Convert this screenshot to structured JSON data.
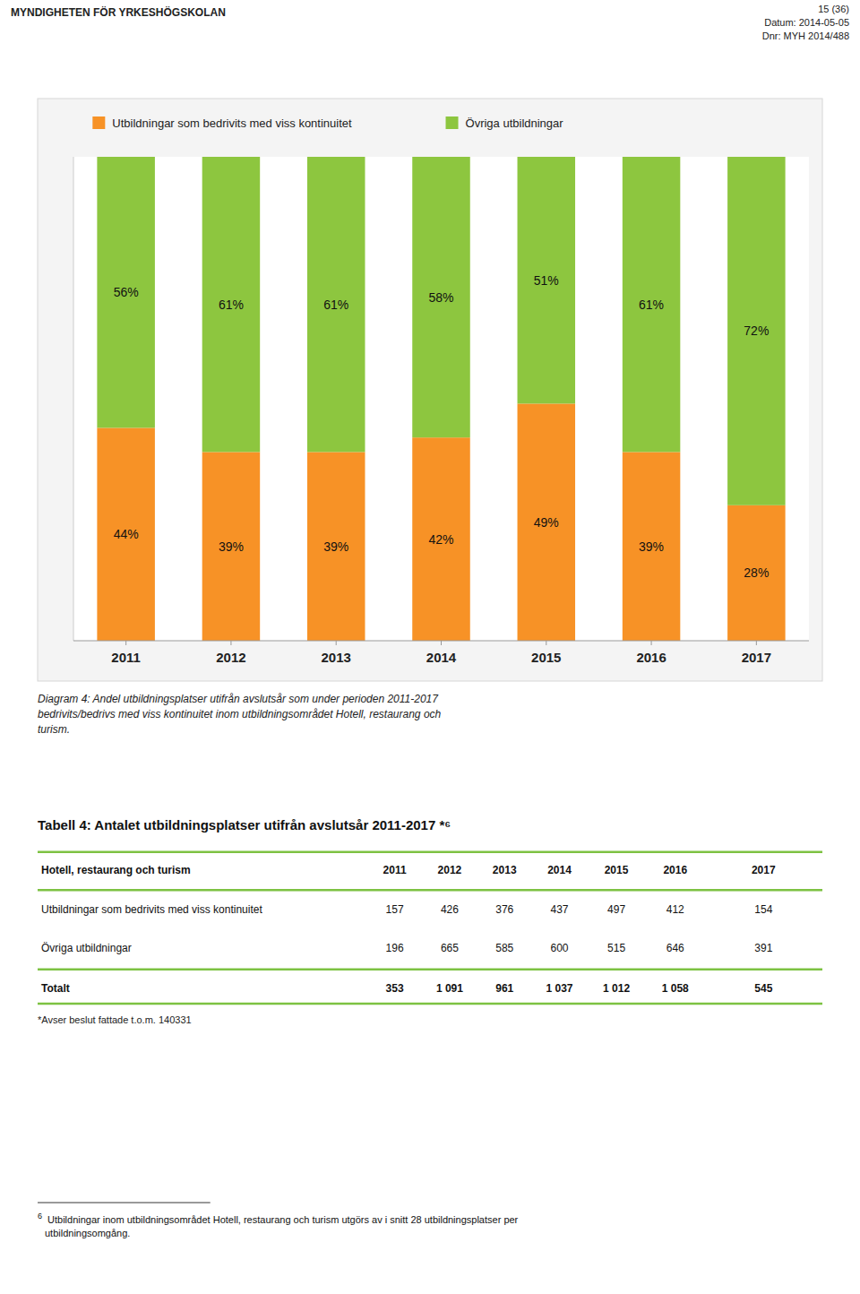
{
  "chart_data": {
    "type": "bar",
    "stacked": true,
    "data_labels": true,
    "tick_labels": "x",
    "title": "Diagram 4: Andel utbildningsplatser utifrån avslutsår som under perioden 2011-2017\nbedrivits/bedrivs med viss kontinuitet inom utbildningsområdet Hotell, restaurang och\nturism.",
    "categories": [
      "2011",
      "2012",
      "2013",
      "2014",
      "2015",
      "2016",
      "2017"
    ],
    "ylim": [
      0,
      100
    ],
    "series": [
      {
        "name": "Utbildningar som bedrivits med viss kontinuitet",
        "color": "#F79226",
        "values": [
          44,
          39,
          39,
          42,
          49,
          39,
          28
        ],
        "value_labels": [
          "44%",
          "39%",
          "39%",
          "42%",
          "49%",
          "39%",
          "28%"
        ]
      },
      {
        "name": "Övriga utbildningar",
        "color": "#8DC63F",
        "values": [
          56,
          61,
          61,
          58,
          51,
          61,
          72
        ],
        "value_labels": [
          "56%",
          "61%",
          "61%",
          "58%",
          "51%",
          "61%",
          "72%"
        ]
      }
    ],
    "annotations": [
      "MYNDIGHETEN FÖR YRKESHÖGSKOLAN",
      "15 (36)",
      "Datum: 2014-05-05",
      "Dnr: MYH 2014/488",
      "*Avser beslut fattade t.o.m. 140331",
      "6",
      " Utbildningar inom utbildningsområdet Hotell, restaurang och turism utgörs av i snitt 28 utbildningsplatser per\nutbildningsomgång."
    ],
    "table": {
      "title": "Tabell 4: Antalet utbildningsplatser utifrån avslutsår 2011-2017 *⁶",
      "header": "Hotell, restaurang och turism",
      "columns": [
        "2011",
        "2012",
        "2013",
        "2014",
        "2015",
        "2016",
        "2017"
      ],
      "line_color": "#7DC242",
      "rows": [
        {
          "label": "Utbildningar som bedrivits med viss kontinuitet",
          "values": [
            157,
            426,
            376,
            437,
            497,
            412,
            154
          ]
        },
        {
          "label": "Övriga utbildningar",
          "values": [
            196,
            665,
            585,
            600,
            515,
            646,
            391
          ]
        },
        {
          "label": "Totalt",
          "values": [
            353,
            1091,
            961,
            1037,
            1012,
            1058,
            545
          ],
          "value_labels": [
            "353",
            "1 091",
            "961",
            "1 037",
            "1 012",
            "1 058",
            "545"
          ]
        }
      ]
    }
  }
}
